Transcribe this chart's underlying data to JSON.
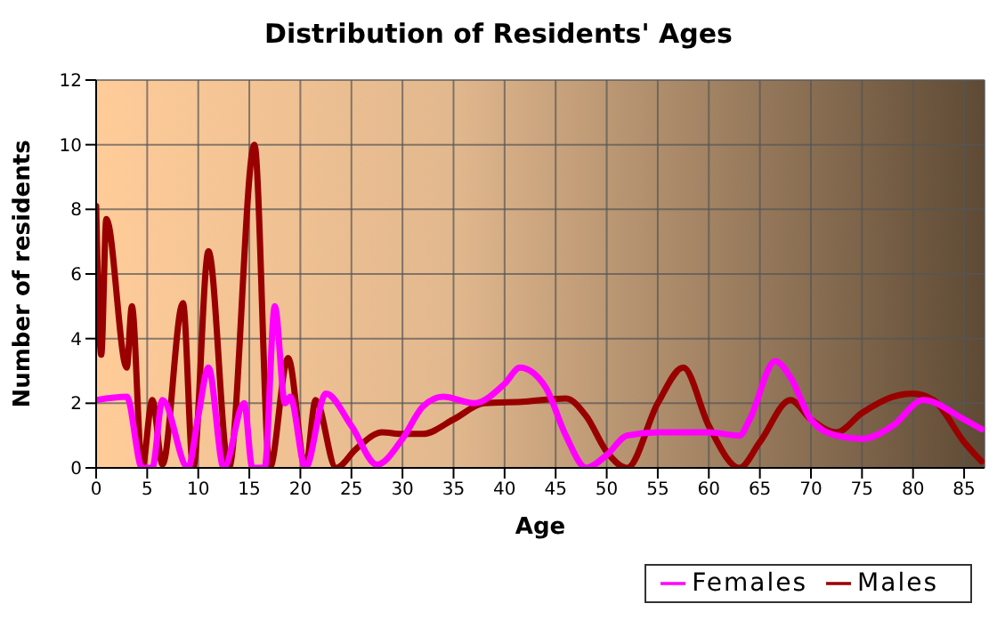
{
  "chart_data": {
    "type": "line",
    "title": "Distribution of Residents' Ages",
    "xlabel": "Age",
    "ylabel": "Number of residents",
    "xlim": [
      0,
      87
    ],
    "xticks": [
      0,
      5,
      10,
      15,
      20,
      25,
      30,
      35,
      40,
      45,
      50,
      55,
      60,
      65,
      70,
      75,
      80,
      85
    ],
    "ylim": [
      0,
      12
    ],
    "yticks": [
      0,
      2,
      4,
      6,
      8,
      10,
      12
    ],
    "grid": true,
    "legend": "bottom right",
    "marker": "none",
    "line_style": "solid",
    "series": [
      {
        "name": "Males",
        "color": "#990000",
        "x": [
          0,
          0.5,
          1,
          3,
          3.5,
          4.5,
          5.5,
          6.5,
          8.5,
          9.5,
          11,
          13,
          15.5,
          17,
          18.8,
          20.5,
          21.5,
          23.5,
          25.5,
          28,
          30,
          32,
          35,
          38,
          42,
          46,
          48,
          50,
          52,
          55,
          57.5,
          60,
          63,
          65,
          68,
          70,
          72.5,
          75,
          78,
          80,
          82,
          85,
          86.7
        ],
        "values": [
          8.1,
          3.5,
          7.7,
          3.1,
          5,
          0,
          2.1,
          0.1,
          5.1,
          0,
          6.7,
          0,
          10,
          0,
          3.4,
          0,
          2.1,
          0,
          0.6,
          1.1,
          1.05,
          1.05,
          1.5,
          2,
          2.05,
          2.15,
          1.6,
          0.5,
          0,
          2,
          3.1,
          1.3,
          0,
          0.8,
          2.1,
          1.5,
          1.1,
          1.7,
          2.2,
          2.3,
          2.1,
          0.8,
          0.2
        ]
      },
      {
        "name": "Females",
        "color": "#ff00ff",
        "x": [
          0,
          3,
          4.5,
          5.5,
          6.5,
          9,
          10,
          11,
          12.5,
          14.5,
          15.3,
          16.5,
          17.5,
          18.5,
          19,
          20.5,
          22.5,
          25,
          27.5,
          30,
          32,
          34,
          37,
          40,
          41.5,
          44,
          46,
          48,
          50,
          52,
          55,
          57,
          60,
          63,
          64,
          66.5,
          68,
          70,
          72.5,
          75,
          78,
          81,
          85,
          86.7
        ],
        "values": [
          2.1,
          2.2,
          0,
          0,
          2.1,
          0,
          1.6,
          3.1,
          0,
          2,
          0,
          0,
          5,
          2,
          2.2,
          0,
          2.3,
          1.3,
          0.1,
          0.9,
          1.9,
          2.2,
          2,
          2.6,
          3.1,
          2.5,
          1,
          0,
          0.4,
          1,
          1.1,
          1.1,
          1.1,
          1,
          1.5,
          3.3,
          2.8,
          1.5,
          1,
          0.9,
          1.3,
          2.1,
          1.5,
          1.2
        ]
      }
    ]
  }
}
